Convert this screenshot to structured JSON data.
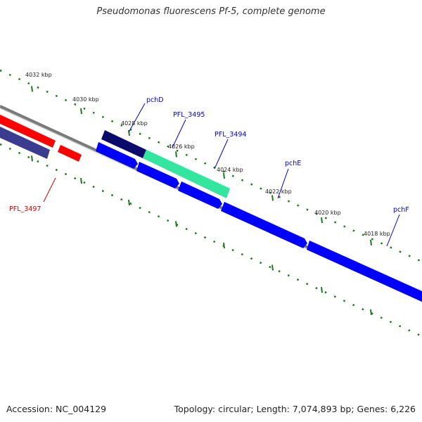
{
  "title": "Pseudomonas fluorescens Pf-5, complete genome",
  "footer": {
    "accession": "Accession: NC_004129",
    "summary": "Topology: circular; Length: 7,074,893 bp; Genes: 6,226"
  },
  "colors": {
    "backbone": "#7a7a7a",
    "tick_dots": "#1f7a1f",
    "reverse_gene": "#ff0000",
    "reverse_gene_dark": "#3b3b8f",
    "forward_gene": "#0000ff",
    "forward_gene_dark": "#0b0b6b",
    "highlight_gene": "#33e6a0",
    "forward_label": "#0000cc",
    "reverse_label": "#cc0000"
  },
  "ticks": [
    {
      "label": "4032 kbp"
    },
    {
      "label": "4030 kbp"
    },
    {
      "label": "4028 kbp"
    },
    {
      "label": "4026 kbp"
    },
    {
      "label": "4024 kbp"
    },
    {
      "label": "4022 kbp"
    },
    {
      "label": "4020 kbp"
    },
    {
      "label": "4018 kbp"
    }
  ],
  "gene_labels": [
    {
      "name": "pchD",
      "strand": "forward"
    },
    {
      "name": "PFL_3495",
      "strand": "forward"
    },
    {
      "name": "PFL_3494",
      "strand": "forward"
    },
    {
      "name": "pchE",
      "strand": "forward"
    },
    {
      "name": "pchF",
      "strand": "forward"
    },
    {
      "name": "PFL_3497",
      "strand": "reverse"
    }
  ]
}
